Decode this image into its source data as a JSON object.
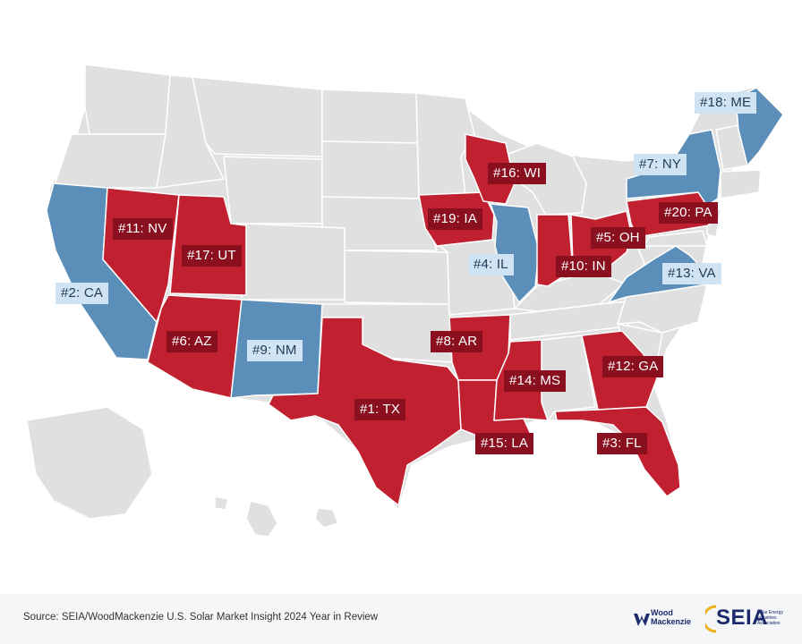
{
  "colors": {
    "top_state": "#c0202f",
    "highlight_state": "#5b8fba",
    "other_state": "#e0e0e0",
    "label_red_bg": "#8a1020",
    "label_blue_bg": "#cfe3f3",
    "border": "#ffffff"
  },
  "rankings": [
    {
      "label": "#1: TX",
      "state": "TX",
      "style": "red"
    },
    {
      "label": "#2: CA",
      "state": "CA",
      "style": "blue"
    },
    {
      "label": "#3: FL",
      "state": "FL",
      "style": "red"
    },
    {
      "label": "#4: IL",
      "state": "IL",
      "style": "blue"
    },
    {
      "label": "#5: OH",
      "state": "OH",
      "style": "red"
    },
    {
      "label": "#6: AZ",
      "state": "AZ",
      "style": "red"
    },
    {
      "label": "#7: NY",
      "state": "NY",
      "style": "blue"
    },
    {
      "label": "#8: AR",
      "state": "AR",
      "style": "red"
    },
    {
      "label": "#9: NM",
      "state": "NM",
      "style": "blue"
    },
    {
      "label": "#10: IN",
      "state": "IN",
      "style": "red"
    },
    {
      "label": "#11: NV",
      "state": "NV",
      "style": "red"
    },
    {
      "label": "#12: GA",
      "state": "GA",
      "style": "red"
    },
    {
      "label": "#13: VA",
      "state": "VA",
      "style": "blue"
    },
    {
      "label": "#14: MS",
      "state": "MS",
      "style": "red"
    },
    {
      "label": "#15: LA",
      "state": "LA",
      "style": "red"
    },
    {
      "label": "#16: WI",
      "state": "WI",
      "style": "red"
    },
    {
      "label": "#17: UT",
      "state": "UT",
      "style": "red"
    },
    {
      "label": "#18: ME",
      "state": "ME",
      "style": "blue"
    },
    {
      "label": "#19: IA",
      "state": "IA",
      "style": "red"
    },
    {
      "label": "#20: PA",
      "state": "PA",
      "style": "red"
    }
  ],
  "footer": {
    "source": "Source: SEIA/WoodMackenzie U.S. Solar Market Insight 2024 Year in Review",
    "woodmac_logo_text": "Wood Mackenzie",
    "seia_logo_text": "SEIA",
    "seia_subtext": "Solar Energy Industries Association"
  }
}
